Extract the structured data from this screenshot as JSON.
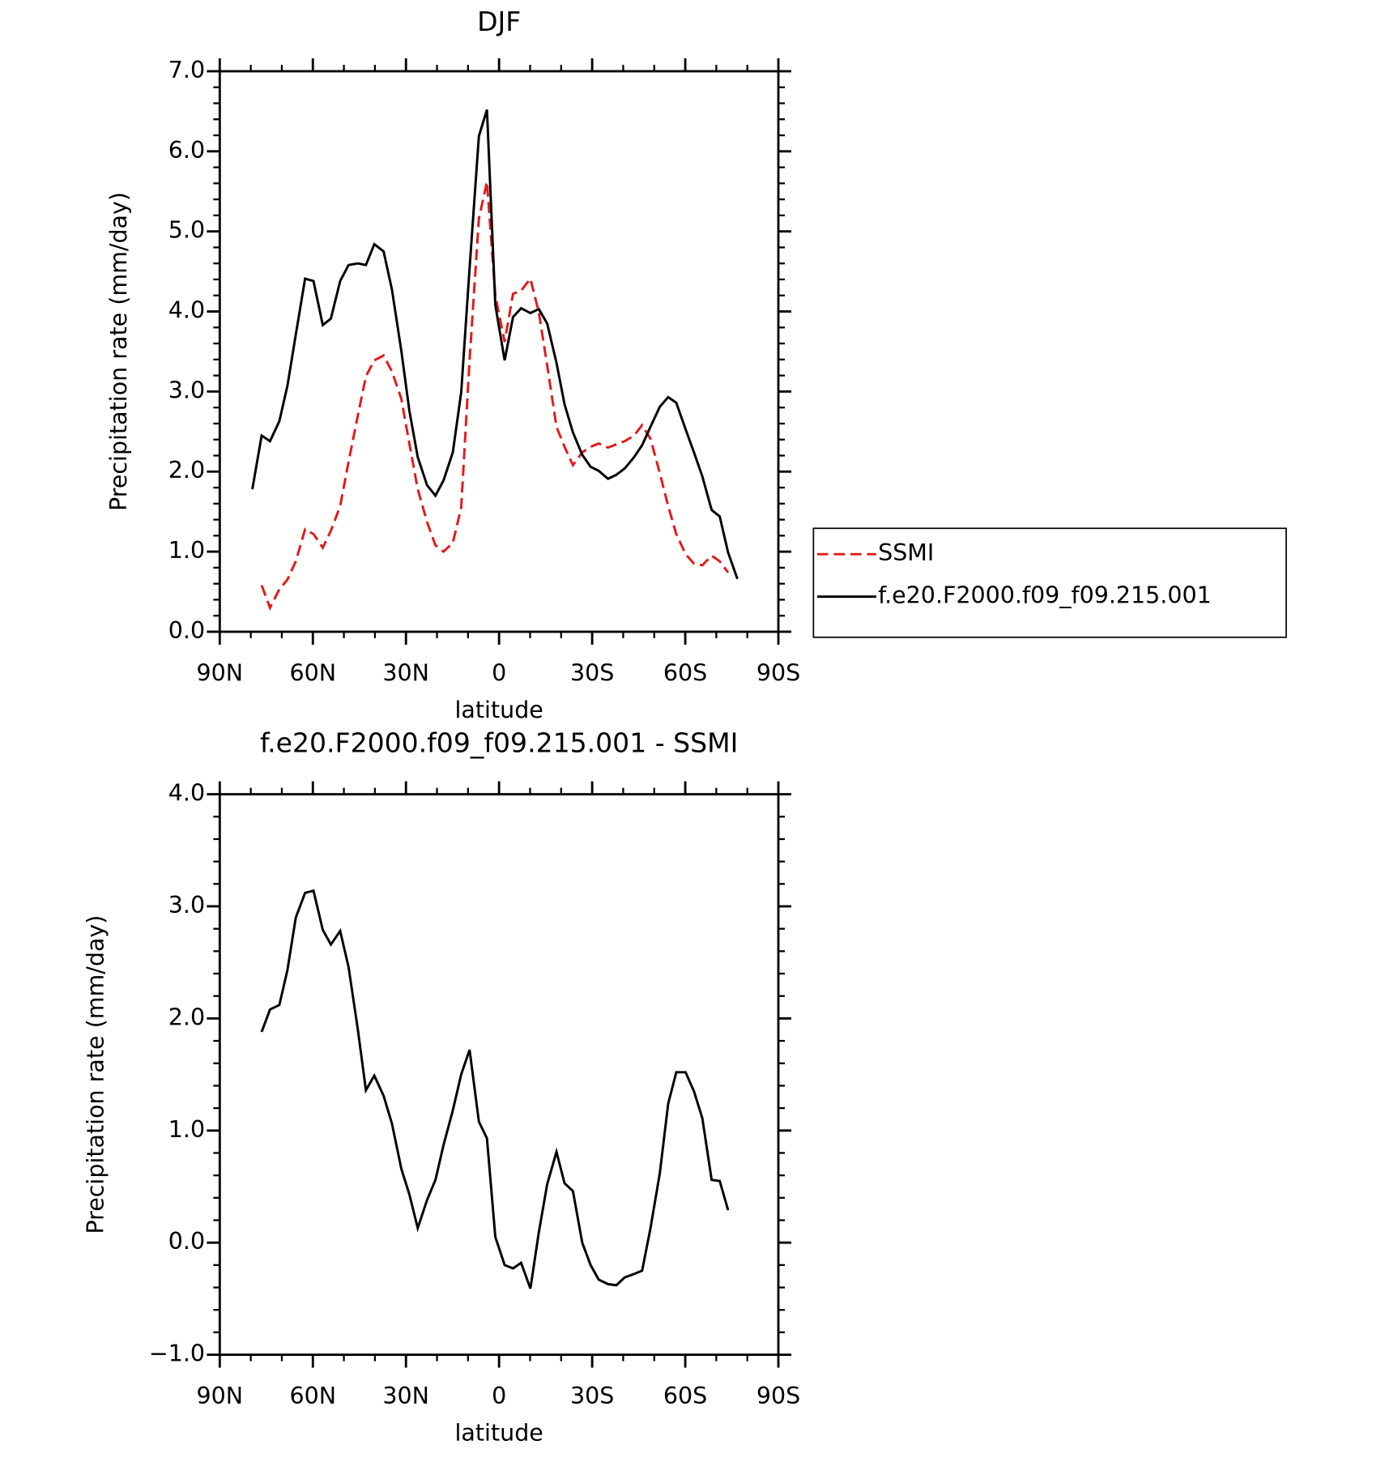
{
  "chart_data": [
    {
      "type": "line",
      "title": "DJF",
      "xlabel": "latitude",
      "ylabel": "Precipitation rate (mm/day)",
      "x": [
        79.5,
        76.5,
        73.8,
        70.8,
        68.2,
        65.5,
        62.5,
        59.8,
        56.8,
        54.2,
        51.2,
        48.5,
        45.5,
        42.9,
        40.2,
        37.2,
        34.5,
        31.5,
        28.9,
        26.2,
        23.2,
        20.5,
        17.9,
        14.9,
        12.2,
        9.5,
        6.5,
        3.9,
        1.2,
        -1.8,
        -4.5,
        -7.1,
        -10.1,
        -12.8,
        -15.5,
        -18.5,
        -21.1,
        -23.8,
        -26.8,
        -29.5,
        -32.1,
        -35.1,
        -37.8,
        -40.5,
        -43.5,
        -46.1,
        -48.8,
        -51.8,
        -54.5,
        -57.1,
        -60.1,
        -62.8,
        -65.5,
        -68.5,
        -71.1,
        -73.8,
        -76.8
      ],
      "series": [
        {
          "name": "SSMI",
          "color": "#e31a1c",
          "dash": "dashed",
          "values": [
            null,
            0.58,
            0.3,
            0.53,
            0.65,
            0.88,
            1.28,
            1.22,
            1.05,
            1.26,
            1.57,
            2.12,
            2.7,
            3.19,
            3.39,
            3.45,
            3.25,
            2.91,
            2.35,
            1.78,
            1.37,
            1.08,
            1.0,
            1.11,
            1.55,
            3.39,
            5.16,
            5.62,
            4.2,
            3.62,
            4.22,
            4.26,
            4.41,
            3.99,
            3.33,
            2.56,
            2.31,
            2.08,
            2.24,
            2.31,
            2.35,
            2.3,
            2.34,
            2.38,
            2.45,
            2.58,
            2.41,
            1.98,
            1.57,
            1.22,
            0.97,
            0.85,
            0.83,
            0.95,
            0.88,
            0.74,
            null
          ]
        },
        {
          "name": "f.e20.F2000.f09_f09.215.001",
          "color": "#000000",
          "dash": "solid",
          "values": [
            1.78,
            2.45,
            2.38,
            2.63,
            3.07,
            3.71,
            4.41,
            4.38,
            3.83,
            3.91,
            4.38,
            4.58,
            4.6,
            4.58,
            4.84,
            4.75,
            4.27,
            3.51,
            2.76,
            2.18,
            1.83,
            1.7,
            1.89,
            2.24,
            2.99,
            4.54,
            6.19,
            6.52,
            4.08,
            3.39,
            3.93,
            4.04,
            3.98,
            4.03,
            3.85,
            3.36,
            2.84,
            2.49,
            2.21,
            2.06,
            2.01,
            1.91,
            1.96,
            2.04,
            2.18,
            2.33,
            2.56,
            2.81,
            2.93,
            2.86,
            2.53,
            2.24,
            1.94,
            1.52,
            1.44,
            0.99,
            0.66
          ]
        }
      ],
      "xlim": [
        90,
        -90
      ],
      "xticks": [
        {
          "value": 90,
          "label": "90N"
        },
        {
          "value": 60,
          "label": "60N"
        },
        {
          "value": 30,
          "label": "30N"
        },
        0,
        {
          "value": -30,
          "label": "30S"
        },
        {
          "value": -60,
          "label": "60S"
        },
        {
          "value": -90,
          "label": "90S"
        }
      ],
      "ylim": [
        0,
        7
      ],
      "yticks": [
        {
          "value": 0,
          "label": "0.0"
        },
        {
          "value": 1,
          "label": "1.0"
        },
        {
          "value": 2,
          "label": "2.0"
        },
        {
          "value": 3,
          "label": "3.0"
        },
        {
          "value": 4,
          "label": "4.0"
        },
        {
          "value": 5,
          "label": "5.0"
        },
        {
          "value": 6,
          "label": "6.0"
        },
        {
          "value": 7,
          "label": "7.0"
        }
      ],
      "legend": "right"
    },
    {
      "type": "line",
      "title": "f.e20.F2000.f09_f09.215.001 - SSMI",
      "xlabel": "latitude",
      "ylabel": "Precipitation rate (mm/day)",
      "x": [
        76.5,
        73.8,
        70.8,
        68.2,
        65.5,
        62.5,
        59.8,
        56.8,
        54.2,
        51.2,
        48.5,
        45.5,
        42.9,
        40.2,
        37.2,
        34.5,
        31.5,
        28.9,
        26.2,
        23.2,
        20.5,
        17.9,
        14.9,
        12.2,
        9.5,
        6.5,
        3.9,
        1.2,
        -1.8,
        -4.5,
        -7.1,
        -10.1,
        -12.8,
        -15.5,
        -18.5,
        -21.1,
        -23.8,
        -26.8,
        -29.5,
        -32.1,
        -35.1,
        -37.8,
        -40.5,
        -43.5,
        -46.1,
        -48.8,
        -51.8,
        -54.5,
        -57.1,
        -60.1,
        -62.8,
        -65.5,
        -68.5,
        -71.1,
        -73.8
      ],
      "color": "#000000",
      "values": [
        1.88,
        2.08,
        2.12,
        2.43,
        2.9,
        3.12,
        3.14,
        2.79,
        2.66,
        2.78,
        2.46,
        1.9,
        1.36,
        1.49,
        1.31,
        1.06,
        0.66,
        0.43,
        0.13,
        0.38,
        0.56,
        0.87,
        1.18,
        1.5,
        1.72,
        1.08,
        0.93,
        0.05,
        -0.2,
        -0.23,
        -0.18,
        -0.41,
        0.09,
        0.52,
        0.81,
        0.53,
        0.46,
        0.0,
        -0.2,
        -0.33,
        -0.37,
        -0.38,
        -0.31,
        -0.28,
        -0.25,
        0.13,
        0.62,
        1.24,
        1.52,
        1.52,
        1.35,
        1.11,
        0.56,
        0.55,
        0.29
      ],
      "xlim": [
        90,
        -90
      ],
      "xticks": [
        {
          "value": 90,
          "label": "90N"
        },
        {
          "value": 60,
          "label": "60N"
        },
        {
          "value": 30,
          "label": "30N"
        },
        0,
        {
          "value": -30,
          "label": "30S"
        },
        {
          "value": -60,
          "label": "60S"
        },
        {
          "value": -90,
          "label": "90S"
        }
      ],
      "ylim": [
        -1,
        4
      ],
      "yticks": [
        {
          "value": -1,
          "label": "−1.0"
        },
        {
          "value": 0,
          "label": "0.0"
        },
        {
          "value": 1,
          "label": "1.0"
        },
        {
          "value": 2,
          "label": "2.0"
        },
        {
          "value": 3,
          "label": "3.0"
        },
        {
          "value": 4,
          "label": "4.0"
        }
      ]
    }
  ]
}
